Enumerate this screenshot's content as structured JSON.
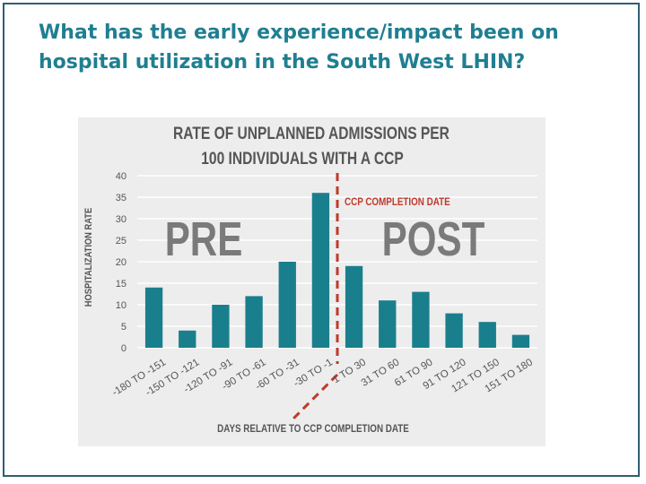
{
  "slide": {
    "title": "What has the early experience/impact been on hospital utilization in the South West LHIN?"
  },
  "colors": {
    "title": "#1f7f91",
    "bar": "#1a7f8c",
    "marker": "#c0392b",
    "text": "#555555",
    "panel": "#ededed",
    "phase_text": "#7a7a7a"
  },
  "chart_data": {
    "type": "bar",
    "title": "RATE OF UNPLANNED ADMISSIONS PER",
    "subtitle": "100 INDIVIDUALS WITH A CCP",
    "xlabel": "DAYS RELATIVE TO CCP COMPLETION DATE",
    "ylabel": "HOSPITALIZATION RATE",
    "ylim": [
      0,
      40
    ],
    "yticks": [
      0,
      5,
      10,
      15,
      20,
      25,
      30,
      35,
      40
    ],
    "categories": [
      "-180 TO -151",
      "-150 TO -121",
      "-120 TO -91",
      "-90 TO -61",
      "-60 TO -31",
      "-30 TO -1",
      "1 TO 30",
      "31 TO 60",
      "61 TO 90",
      "91 TO 120",
      "121 TO 150",
      "151 TO 180"
    ],
    "values": [
      14,
      4,
      10,
      12,
      20,
      36,
      19,
      11,
      13,
      8,
      6,
      3
    ],
    "grid": true,
    "annotations": {
      "pre": "PRE",
      "post": "POST",
      "marker": "CCP COMPLETION DATE",
      "marker_after_category_index": 5
    }
  }
}
